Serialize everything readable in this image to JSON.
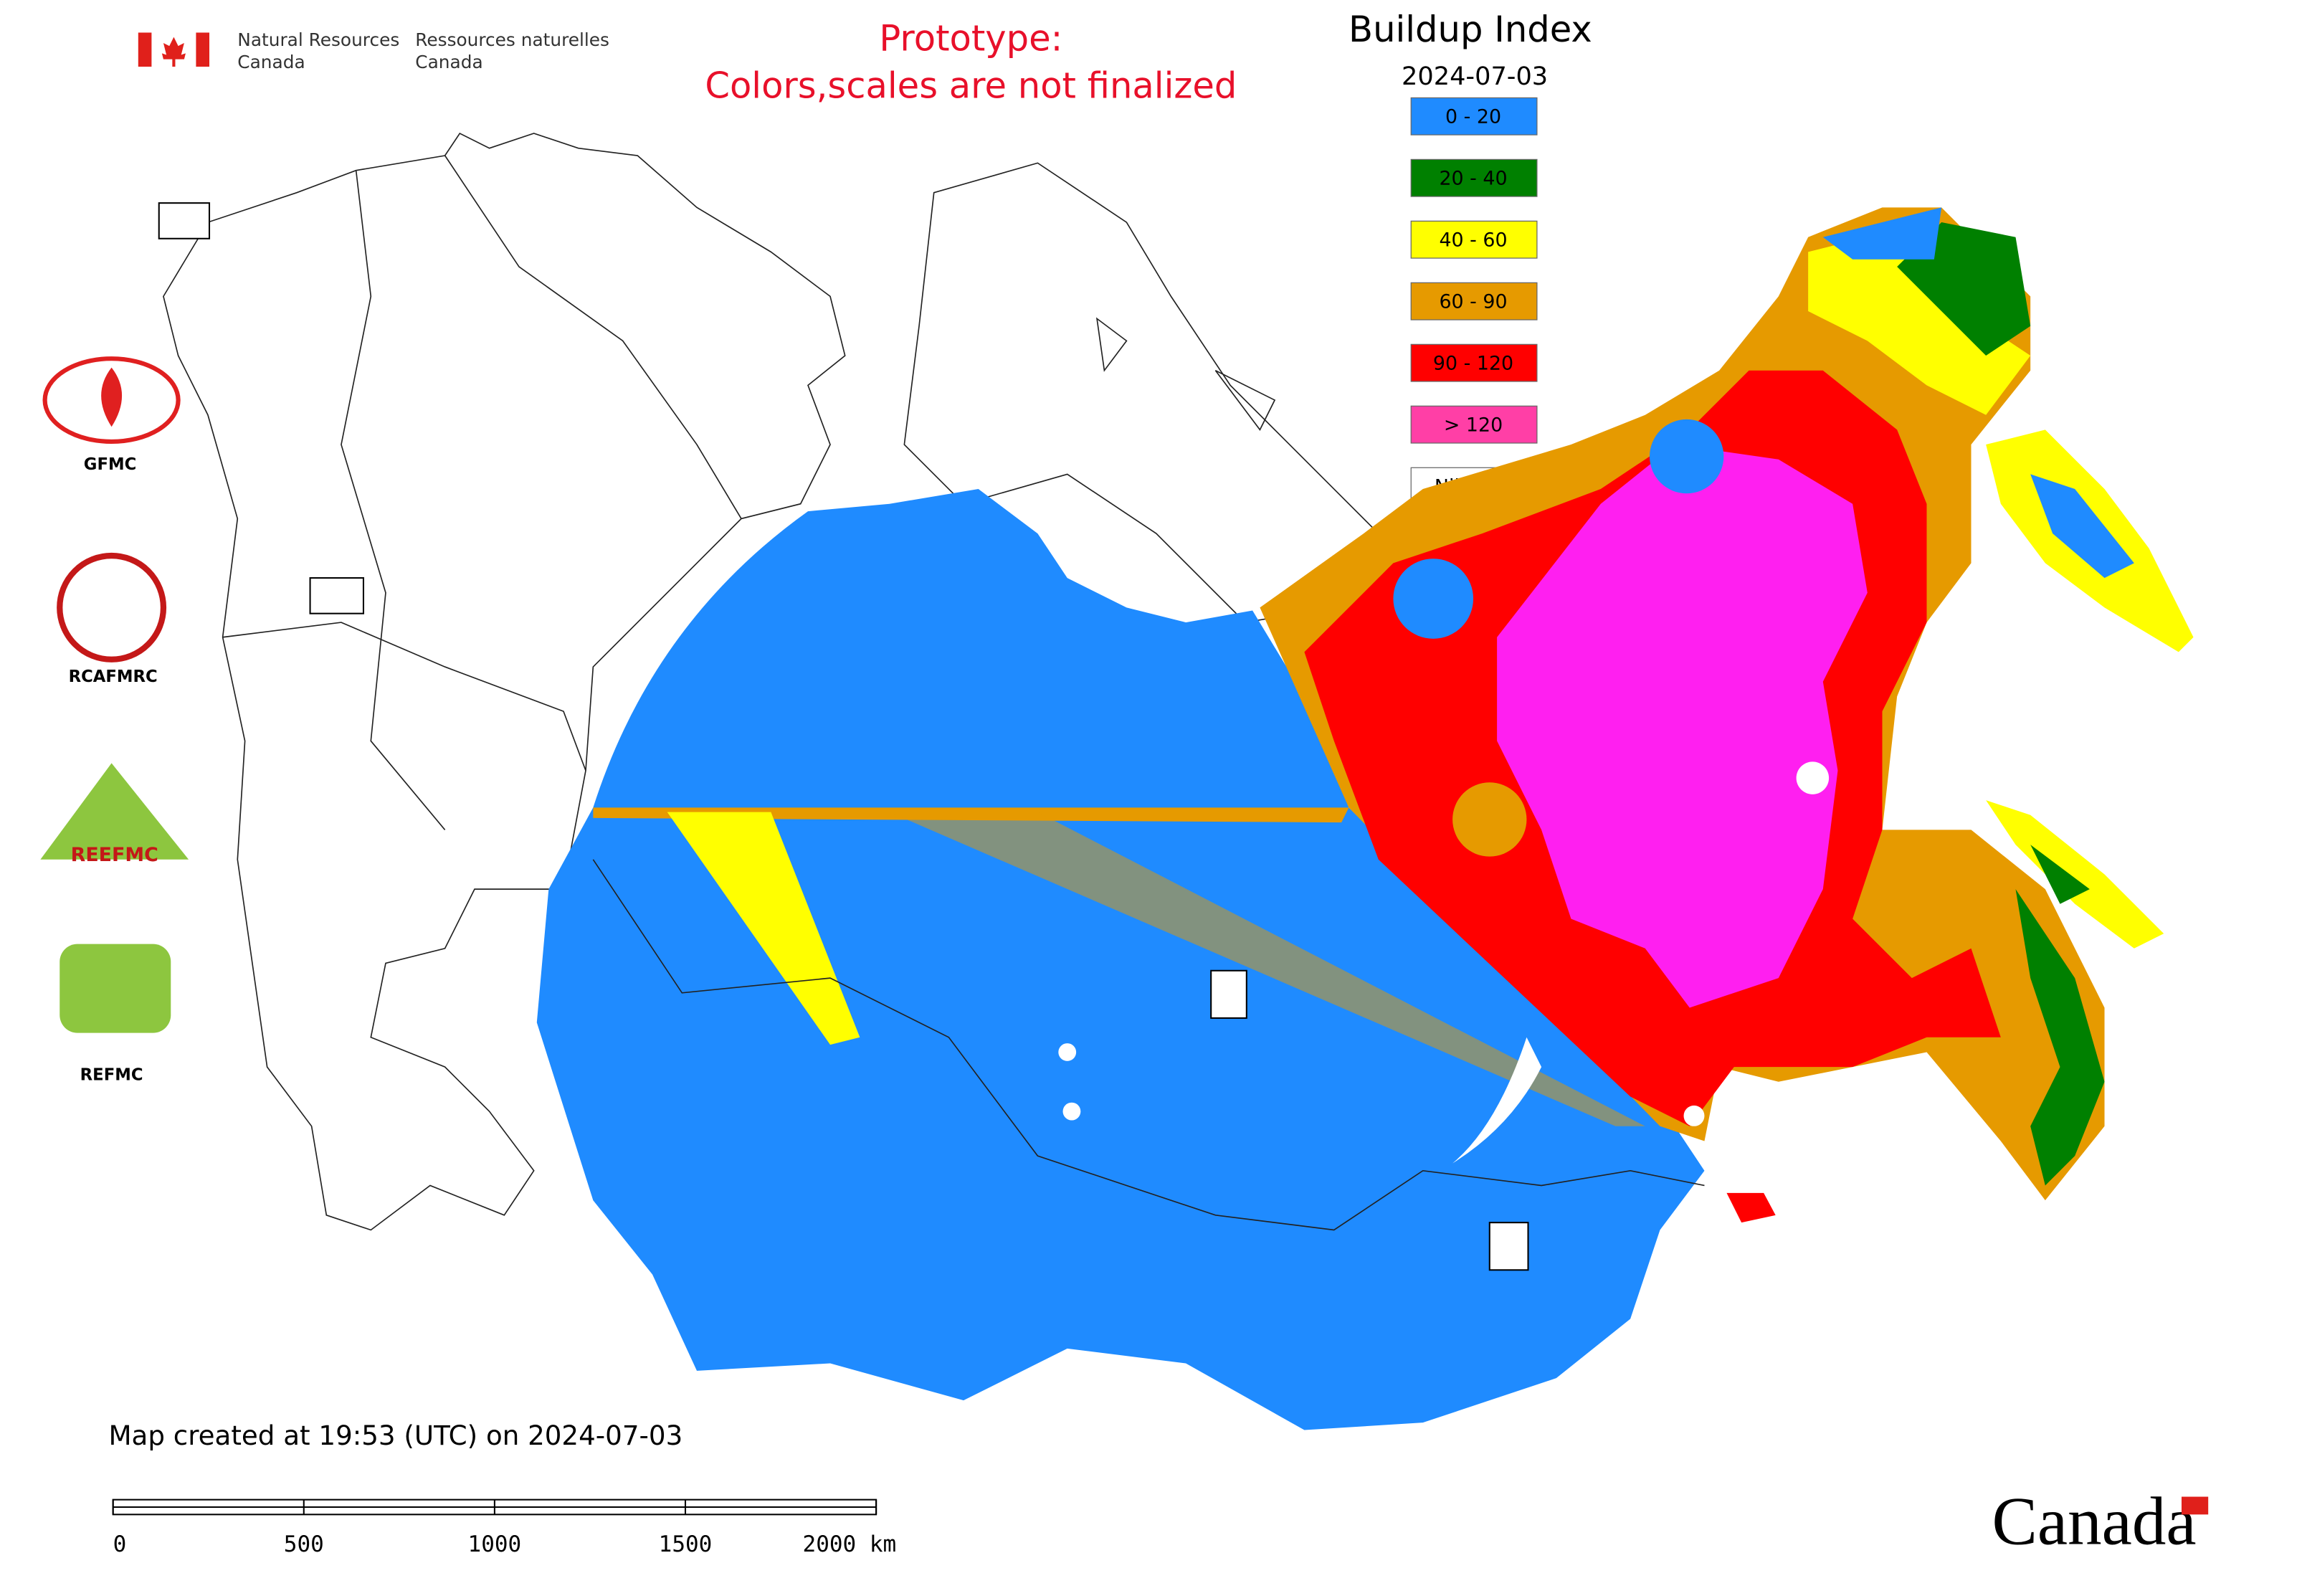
{
  "header": {
    "agency_en_1": "Natural Resources",
    "agency_en_2": "Canada",
    "agency_fr_1": "Ressources naturelles",
    "agency_fr_2": "Canada"
  },
  "notice": {
    "line1": "Prototype:",
    "line2": "Colors,scales are not finalized"
  },
  "legend": {
    "title": "Buildup Index",
    "date": "2024-07-03",
    "items": [
      {
        "label": "0 - 20",
        "color": "#1f8bff"
      },
      {
        "label": "20 - 40",
        "color": "#008000"
      },
      {
        "label": "40 - 60",
        "color": "#ffff00"
      },
      {
        "label": "60 - 90",
        "color": "#e69a00"
      },
      {
        "label": "90 - 120",
        "color": "#ff0000"
      },
      {
        "label": "> 120",
        "color": "#ff3fa6"
      },
      {
        "label": "Nil / s.o.",
        "color": "#ffffff"
      }
    ]
  },
  "logos": [
    "GFMC",
    "RCAFMRC",
    "REEFMC",
    "REFMC"
  ],
  "footer": {
    "created": "Map created at 19:53 (UTC) on 2024-07-03",
    "wordmark": "Canada"
  },
  "scale_bar": {
    "ticks": [
      "0",
      "500",
      "1000",
      "1500",
      "2000 km"
    ]
  }
}
